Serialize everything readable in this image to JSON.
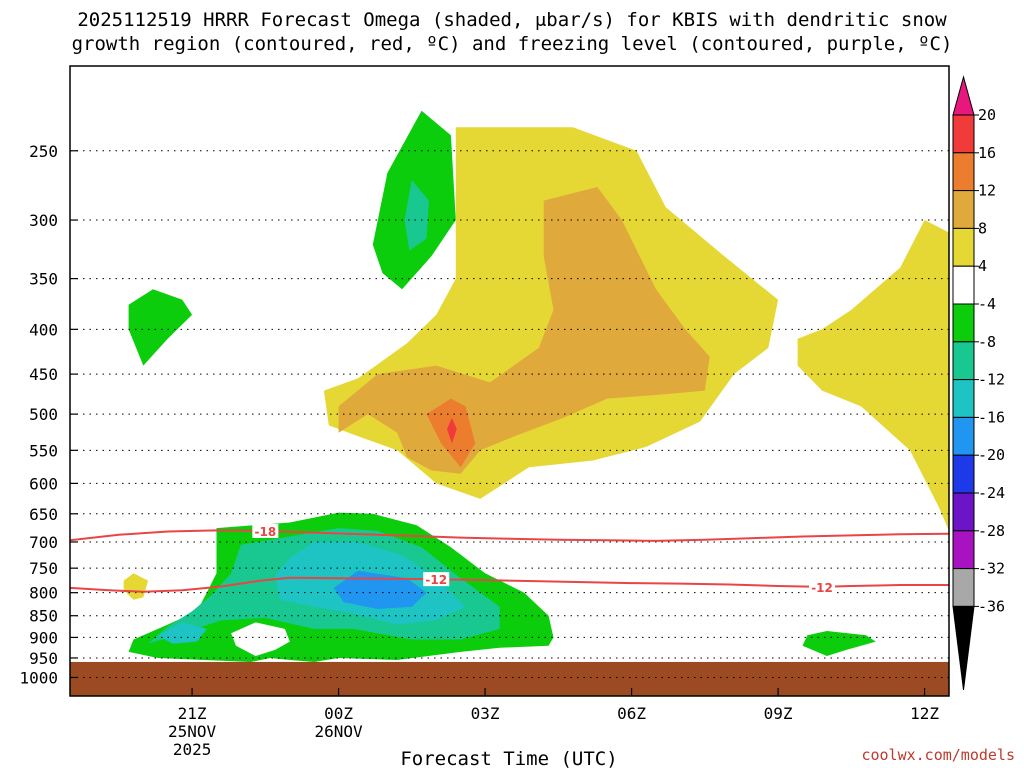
{
  "chart_data": {
    "type": "filled-contour",
    "title_lines": [
      "2025112519 HRRR Forecast Omega (shaded, μbar/s) for KBIS with dendritic snow",
      "growth region (contoured, red, ºC) and freezing level (contoured, purple, ºC)"
    ],
    "xlabel": "Forecast Time (UTC)",
    "credit": "coolwx.com/models",
    "x_axis": {
      "unit": "hours since 2025-11-25 19Z",
      "range": [
        -0.5,
        17.5
      ],
      "ticks": [
        {
          "hour": 2,
          "lines": [
            "21Z",
            "25NOV",
            "2025"
          ]
        },
        {
          "hour": 5,
          "lines": [
            "00Z",
            "26NOV"
          ]
        },
        {
          "hour": 8,
          "lines": [
            "03Z"
          ]
        },
        {
          "hour": 11,
          "lines": [
            "06Z"
          ]
        },
        {
          "hour": 14,
          "lines": [
            "09Z"
          ]
        },
        {
          "hour": 17,
          "lines": [
            "12Z"
          ]
        }
      ]
    },
    "y_axis": {
      "unit": "hPa",
      "scale": "log",
      "range": [
        1050,
        200
      ],
      "ticks": [
        250,
        300,
        350,
        400,
        450,
        500,
        550,
        600,
        650,
        700,
        750,
        800,
        850,
        900,
        950,
        1000
      ],
      "grid": true
    },
    "colorbar": {
      "labels": [
        20,
        16,
        12,
        8,
        4,
        -4,
        -8,
        -12,
        -16,
        -20,
        -24,
        -28,
        -32,
        -36
      ],
      "bins": [
        {
          "range": "above 20",
          "color": "#e8177e"
        },
        {
          "range": "16 to 20",
          "color": "#f13b3b"
        },
        {
          "range": "12 to 16",
          "color": "#ec7d2e"
        },
        {
          "range": "8 to 12",
          "color": "#e0a93c"
        },
        {
          "range": "4 to 8",
          "color": "#e5d835"
        },
        {
          "range": "-4 to 4",
          "color": "#ffffff"
        },
        {
          "range": "-8 to -4",
          "color": "#0bcd0b"
        },
        {
          "range": "-12 to -8",
          "color": "#19c890"
        },
        {
          "range": "-16 to -12",
          "color": "#1ec3c3"
        },
        {
          "range": "-20 to -16",
          "color": "#2196f0"
        },
        {
          "range": "-24 to -20",
          "color": "#1e39e8"
        },
        {
          "range": "-28 to -24",
          "color": "#6b14c8"
        },
        {
          "range": "-32 to -28",
          "color": "#a812c0"
        },
        {
          "range": "-36 to -32",
          "color": "#a8a8a8"
        },
        {
          "range": "below -36",
          "color": "#000000"
        }
      ]
    },
    "ground_color": "#9c4a22",
    "ground_top_hPa": 960,
    "shaded_regions": [
      {
        "level": "4 to 8",
        "color": "#e5d835",
        "points": [
          [
            7.4,
            235
          ],
          [
            9.8,
            235
          ],
          [
            11.1,
            250
          ],
          [
            11.7,
            290
          ],
          [
            12.9,
            330
          ],
          [
            13.6,
            355
          ],
          [
            14.0,
            370
          ],
          [
            13.8,
            420
          ],
          [
            13.1,
            450
          ],
          [
            12.4,
            510
          ],
          [
            11.3,
            545
          ],
          [
            10.2,
            565
          ],
          [
            8.9,
            575
          ],
          [
            7.9,
            625
          ],
          [
            7.0,
            600
          ],
          [
            6.2,
            550
          ],
          [
            5.4,
            530
          ],
          [
            4.8,
            515
          ],
          [
            4.7,
            470
          ],
          [
            5.4,
            455
          ],
          [
            6.4,
            415
          ],
          [
            7.0,
            385
          ],
          [
            7.4,
            350
          ]
        ]
      },
      {
        "level": "4 to 8",
        "color": "#e5d835",
        "points": [
          [
            17.0,
            300
          ],
          [
            17.5,
            310
          ],
          [
            17.5,
            680
          ],
          [
            17.3,
            640
          ],
          [
            16.7,
            550
          ],
          [
            15.7,
            490
          ],
          [
            14.9,
            470
          ],
          [
            14.4,
            440
          ],
          [
            14.4,
            410
          ],
          [
            14.9,
            400
          ],
          [
            15.5,
            380
          ],
          [
            16.5,
            340
          ]
        ]
      },
      {
        "level": "4 to 8",
        "color": "#e5d835",
        "points": [
          [
            0.8,
            760
          ],
          [
            1.1,
            775
          ],
          [
            1.0,
            810
          ],
          [
            0.8,
            815
          ],
          [
            0.6,
            795
          ],
          [
            0.6,
            775
          ]
        ]
      },
      {
        "level": "8 to 12",
        "color": "#e0a93c",
        "points": [
          [
            9.2,
            285
          ],
          [
            10.3,
            275
          ],
          [
            10.8,
            300
          ],
          [
            11.5,
            360
          ],
          [
            12.1,
            400
          ],
          [
            12.6,
            430
          ],
          [
            12.5,
            470
          ],
          [
            11.6,
            475
          ],
          [
            10.5,
            480
          ],
          [
            9.6,
            505
          ],
          [
            8.6,
            530
          ],
          [
            7.9,
            550
          ],
          [
            7.5,
            585
          ],
          [
            6.9,
            580
          ],
          [
            6.4,
            560
          ],
          [
            6.2,
            525
          ],
          [
            5.6,
            500
          ],
          [
            5.0,
            525
          ],
          [
            5.0,
            490
          ],
          [
            5.8,
            450
          ],
          [
            7.0,
            440
          ],
          [
            8.1,
            460
          ],
          [
            9.1,
            420
          ],
          [
            9.4,
            380
          ],
          [
            9.2,
            330
          ]
        ]
      },
      {
        "level": "12 to 16",
        "color": "#ec7d2e",
        "points": [
          [
            7.3,
            480
          ],
          [
            7.6,
            490
          ],
          [
            7.8,
            540
          ],
          [
            7.5,
            575
          ],
          [
            7.1,
            540
          ],
          [
            6.8,
            500
          ]
        ]
      },
      {
        "level": "16 to 20",
        "color": "#f13b3b",
        "points": [
          [
            7.32,
            505
          ],
          [
            7.42,
            520
          ],
          [
            7.32,
            540
          ],
          [
            7.22,
            520
          ]
        ]
      },
      {
        "level": "-8 to -4",
        "color": "#0bcd0b",
        "points": [
          [
            6.7,
            225
          ],
          [
            7.3,
            240
          ],
          [
            7.4,
            300
          ],
          [
            6.9,
            330
          ],
          [
            6.3,
            360
          ],
          [
            5.9,
            345
          ],
          [
            5.7,
            320
          ],
          [
            6.0,
            265
          ]
        ]
      },
      {
        "level": "-12 to -8",
        "color": "#19c890",
        "points": [
          [
            6.5,
            270
          ],
          [
            6.85,
            285
          ],
          [
            6.8,
            315
          ],
          [
            6.45,
            325
          ],
          [
            6.35,
            300
          ]
        ]
      },
      {
        "level": "-8 to -4",
        "color": "#0bcd0b",
        "points": [
          [
            1.2,
            360
          ],
          [
            1.8,
            370
          ],
          [
            2.0,
            385
          ],
          [
            1.5,
            410
          ],
          [
            1.0,
            440
          ],
          [
            0.7,
            400
          ],
          [
            0.7,
            375
          ]
        ]
      },
      {
        "level": "-8 to -4",
        "color": "#0bcd0b",
        "points": [
          [
            2.5,
            675
          ],
          [
            4.0,
            665
          ],
          [
            5.0,
            648
          ],
          [
            5.7,
            650
          ],
          [
            6.6,
            670
          ],
          [
            7.3,
            710
          ],
          [
            8.0,
            760
          ],
          [
            8.8,
            800
          ],
          [
            9.3,
            850
          ],
          [
            9.4,
            900
          ],
          [
            9.3,
            920
          ],
          [
            8.3,
            925
          ],
          [
            7.5,
            935
          ],
          [
            6.2,
            955
          ],
          [
            5.0,
            950
          ],
          [
            4.5,
            960
          ],
          [
            4.0,
            955
          ],
          [
            3.6,
            950
          ],
          [
            3.2,
            960
          ],
          [
            1.3,
            950
          ],
          [
            0.7,
            935
          ],
          [
            0.8,
            905
          ],
          [
            1.5,
            870
          ],
          [
            2.1,
            840
          ],
          [
            2.3,
            800
          ],
          [
            2.5,
            760
          ],
          [
            2.5,
            710
          ]
        ]
      },
      {
        "level": "-12 to -8",
        "color": "#19c890",
        "points": [
          [
            3.0,
            705
          ],
          [
            4.0,
            690
          ],
          [
            5.0,
            675
          ],
          [
            5.8,
            680
          ],
          [
            6.7,
            710
          ],
          [
            7.5,
            770
          ],
          [
            8.3,
            830
          ],
          [
            8.3,
            880
          ],
          [
            7.5,
            905
          ],
          [
            6.5,
            905
          ],
          [
            5.3,
            880
          ],
          [
            4.5,
            880
          ],
          [
            3.5,
            855
          ],
          [
            2.6,
            860
          ],
          [
            1.8,
            890
          ],
          [
            1.1,
            915
          ],
          [
            1.5,
            875
          ],
          [
            2.0,
            840
          ],
          [
            2.4,
            805
          ],
          [
            2.8,
            760
          ]
        ]
      },
      {
        "level": "-16 to -12",
        "color": "#1ec3c3",
        "points": [
          [
            4.5,
            700
          ],
          [
            5.4,
            700
          ],
          [
            6.3,
            725
          ],
          [
            7.0,
            770
          ],
          [
            7.6,
            830
          ],
          [
            7.0,
            860
          ],
          [
            6.2,
            870
          ],
          [
            5.3,
            845
          ],
          [
            4.5,
            830
          ],
          [
            3.8,
            815
          ],
          [
            3.7,
            765
          ],
          [
            4.0,
            730
          ]
        ]
      },
      {
        "level": "-16 to -12",
        "color": "#1ec3c3",
        "points": [
          [
            1.8,
            865
          ],
          [
            2.3,
            880
          ],
          [
            2.1,
            910
          ],
          [
            1.6,
            915
          ],
          [
            1.3,
            895
          ]
        ]
      },
      {
        "level": "-20 to -16",
        "color": "#2196f0",
        "points": [
          [
            5.4,
            755
          ],
          [
            6.4,
            770
          ],
          [
            6.8,
            800
          ],
          [
            6.5,
            830
          ],
          [
            5.8,
            835
          ],
          [
            5.1,
            820
          ],
          [
            4.9,
            790
          ]
        ]
      },
      {
        "level": "-8 to -4",
        "color": "#0bcd0b",
        "points": [
          [
            15.0,
            885
          ],
          [
            15.8,
            895
          ],
          [
            16.0,
            910
          ],
          [
            15.4,
            930
          ],
          [
            15.0,
            945
          ],
          [
            14.5,
            920
          ],
          [
            14.6,
            895
          ]
        ]
      }
    ],
    "white_holes": [
      [
        [
          3.3,
          865
        ],
        [
          3.9,
          880
        ],
        [
          4.0,
          910
        ],
        [
          3.7,
          930
        ],
        [
          3.3,
          945
        ],
        [
          2.9,
          920
        ],
        [
          2.8,
          890
        ]
      ]
    ],
    "contours": [
      {
        "name": "-18",
        "color": "#e84545",
        "label": "-18",
        "label_hour": 3.5,
        "points": [
          [
            -0.5,
            697
          ],
          [
            0.5,
            687
          ],
          [
            1.5,
            681
          ],
          [
            2.5,
            679
          ],
          [
            3.5,
            680
          ],
          [
            4.5,
            683
          ],
          [
            5.5,
            686
          ],
          [
            6.5,
            689
          ],
          [
            7.5,
            692
          ],
          [
            8.5,
            694
          ],
          [
            9.5,
            696
          ],
          [
            10.5,
            697
          ],
          [
            11.5,
            698
          ],
          [
            12.5,
            696
          ],
          [
            13.5,
            693
          ],
          [
            14.5,
            690
          ],
          [
            15.5,
            688
          ],
          [
            16.5,
            686
          ],
          [
            17.5,
            685
          ]
        ]
      },
      {
        "name": "-12",
        "color": "#e84545",
        "label": "-12",
        "label_hour": 7.0,
        "label2_hour": 14.9,
        "points": [
          [
            -0.5,
            790
          ],
          [
            0.3,
            795
          ],
          [
            1.0,
            798
          ],
          [
            1.8,
            795
          ],
          [
            2.6,
            787
          ],
          [
            3.4,
            775
          ],
          [
            4.0,
            769
          ],
          [
            5.0,
            770
          ],
          [
            6.0,
            771
          ],
          [
            7.0,
            772
          ],
          [
            8.0,
            774
          ],
          [
            9.0,
            776
          ],
          [
            10.0,
            778
          ],
          [
            11.0,
            780
          ],
          [
            12.0,
            781
          ],
          [
            13.0,
            783
          ],
          [
            14.0,
            786
          ],
          [
            14.9,
            788
          ],
          [
            15.5,
            786
          ],
          [
            16.5,
            784
          ],
          [
            17.5,
            784
          ]
        ]
      }
    ]
  }
}
